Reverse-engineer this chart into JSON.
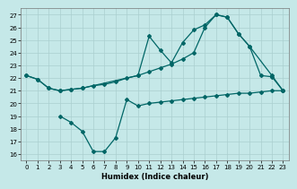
{
  "xlabel": "Humidex (Indice chaleur)",
  "bg_color": "#c5e8e8",
  "line_color": "#006666",
  "grid_color": "#aacfcf",
  "xlim": [
    -0.5,
    23.5
  ],
  "ylim": [
    15.5,
    27.5
  ],
  "xticks": [
    0,
    1,
    2,
    3,
    4,
    5,
    6,
    7,
    8,
    9,
    10,
    11,
    12,
    13,
    14,
    15,
    16,
    17,
    18,
    19,
    20,
    21,
    22,
    23
  ],
  "yticks": [
    16,
    17,
    18,
    19,
    20,
    21,
    22,
    23,
    24,
    25,
    26,
    27
  ],
  "line_upper_x": [
    0,
    1,
    2,
    3,
    4,
    5,
    10,
    11,
    12,
    13,
    14,
    15,
    16,
    17,
    18,
    19,
    20,
    22,
    23
  ],
  "line_upper_y": [
    22.2,
    21.9,
    21.2,
    21.0,
    21.1,
    21.2,
    22.2,
    25.3,
    24.2,
    23.2,
    24.8,
    25.8,
    26.2,
    27.0,
    26.8,
    25.5,
    24.5,
    22.2,
    21.0
  ],
  "line_mid_x": [
    0,
    1,
    2,
    3,
    4,
    5,
    6,
    7,
    8,
    9,
    10,
    11,
    12,
    13,
    14,
    15,
    16,
    17,
    18,
    19,
    20,
    21,
    22,
    23
  ],
  "line_mid_y": [
    22.2,
    21.9,
    21.2,
    21.0,
    21.1,
    21.2,
    21.4,
    21.5,
    21.7,
    22.0,
    22.2,
    22.5,
    22.8,
    23.1,
    23.5,
    24.0,
    26.0,
    27.0,
    26.8,
    25.5,
    24.5,
    22.2,
    22.1,
    21.0
  ],
  "line_bottom_x": [
    3,
    4,
    5,
    6,
    7,
    8,
    9,
    10,
    11,
    12,
    13,
    14,
    15,
    16,
    17,
    18,
    19,
    20,
    21,
    22,
    23
  ],
  "line_bottom_y": [
    19.0,
    18.5,
    17.8,
    16.2,
    16.2,
    17.3,
    20.3,
    19.8,
    20.0,
    20.1,
    20.2,
    20.3,
    20.4,
    20.5,
    20.6,
    20.7,
    20.8,
    20.8,
    20.9,
    21.0,
    21.0
  ]
}
